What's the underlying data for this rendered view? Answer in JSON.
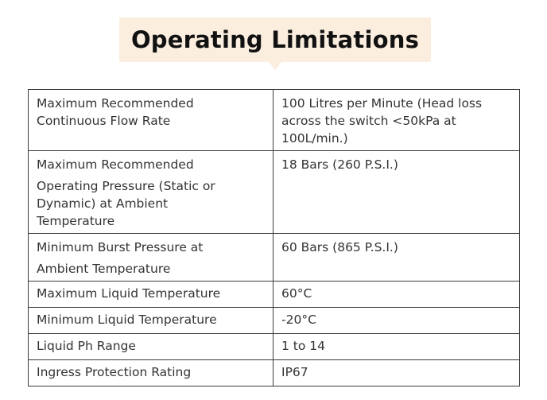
{
  "title": "Operating Limitations",
  "rows": [
    {
      "parameter": [
        "Maximum Recommended",
        "Continuous Flow Rate"
      ],
      "value": [
        "100 Litres per Minute (Head loss",
        "across the switch <50kPa at",
        "100L/min.)"
      ]
    },
    {
      "parameter": [
        "Maximum Recommended",
        "Operating Pressure (Static or",
        "Dynamic) at Ambient",
        "Temperature"
      ],
      "value": [
        "18 Bars (260 P.S.I.)"
      ]
    },
    {
      "parameter": [
        "Minimum Burst Pressure at",
        "Ambient Temperature"
      ],
      "value": [
        "60 Bars (865 P.S.I.)"
      ]
    },
    {
      "parameter": [
        "Maximum Liquid Temperature"
      ],
      "value": [
        "60°C"
      ]
    },
    {
      "parameter": [
        "Minimum Liquid Temperature"
      ],
      "value": [
        "-20°C"
      ]
    },
    {
      "parameter": [
        "Liquid Ph Range"
      ],
      "value": [
        "1 to 14"
      ]
    },
    {
      "parameter": [
        "Ingress Protection Rating"
      ],
      "value": [
        "IP67"
      ]
    }
  ]
}
